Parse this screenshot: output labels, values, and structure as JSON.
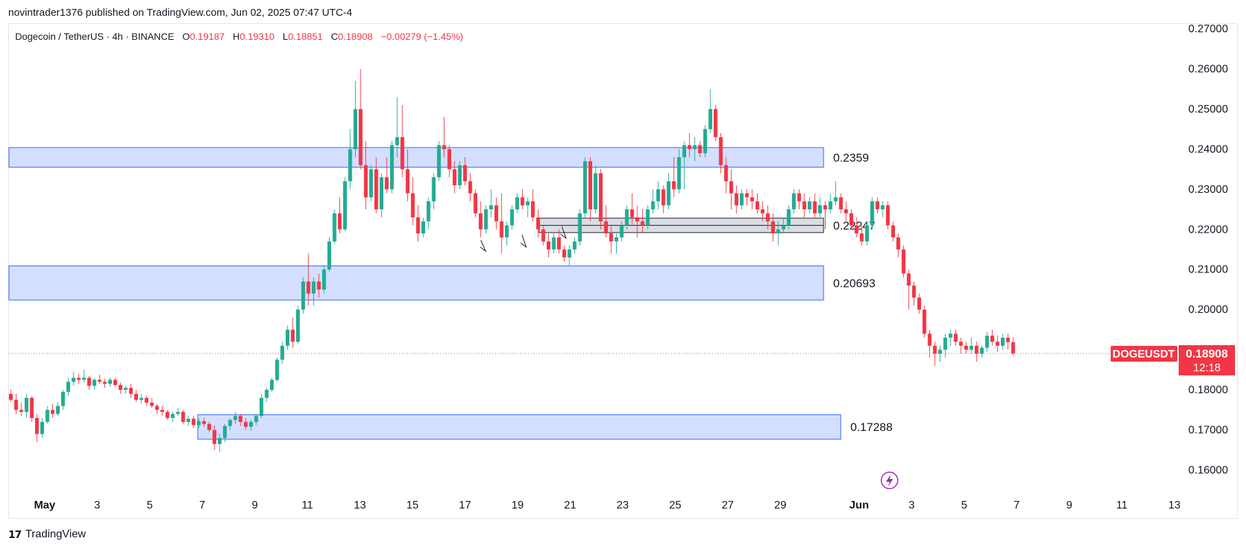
{
  "header": {
    "published": "novintrader1376 published on TradingView.com, Jun 02, 2025 07:47 UTC-4"
  },
  "legend": {
    "symbol": "Dogecoin / TetherUS · 4h · BINANCE",
    "o_label": "O",
    "o": "0.19187",
    "h_label": "H",
    "h": "0.19310",
    "l_label": "L",
    "l": "0.18851",
    "c_label": "C",
    "c": "0.18908",
    "change": "−0.00279 (−1.45%)"
  },
  "price_badge": {
    "ticker": "DOGEUSDT",
    "price": "0.18908",
    "countdown": "12:18"
  },
  "branding": {
    "name": "TradingView"
  },
  "colors": {
    "up": "#22ab94",
    "down": "#f23645",
    "zone_fill": "#cfdcff",
    "zone_stroke": "#2962ff",
    "gray_zone": "#d1d4dc"
  },
  "chart_data": {
    "type": "candlestick",
    "title": "",
    "xlabel": "",
    "ylabel": "",
    "ylim": [
      0.15,
      0.27
    ],
    "y_ticks": [
      "0.27000",
      "0.26000",
      "0.25000",
      "0.24000",
      "0.23000",
      "0.22000",
      "0.21000",
      "0.20000",
      "0.18000",
      "0.17000",
      "0.16000"
    ],
    "x_ticks": [
      "May",
      "3",
      "5",
      "7",
      "9",
      "11",
      "13",
      "15",
      "17",
      "19",
      "21",
      "23",
      "25",
      "27",
      "29",
      "Jun",
      "3",
      "5",
      "7",
      "9",
      "11",
      "13"
    ],
    "last_price": 0.18908,
    "zones": [
      {
        "label": "0.2359",
        "low": 0.2355,
        "high": 0.2404,
        "from": "May 1",
        "to": "May 31",
        "style": "blue"
      },
      {
        "label": "0.22247",
        "low": 0.2192,
        "high": 0.2228,
        "from": "May 20",
        "to": "May 31",
        "style": "gray"
      },
      {
        "label": "0.20693",
        "low": 0.2024,
        "high": 0.2109,
        "from": "May 1",
        "to": "May 31",
        "style": "blue"
      },
      {
        "label": "0.17288",
        "low": 0.1677,
        "high": 0.1738,
        "from": "May 7",
        "to": "Jun 1",
        "style": "blue"
      }
    ],
    "ohlc_4h": [
      [
        0.179,
        0.1802,
        0.177,
        0.1775
      ],
      [
        0.1775,
        0.179,
        0.174,
        0.175
      ],
      [
        0.175,
        0.1768,
        0.1735,
        0.1745
      ],
      [
        0.1745,
        0.179,
        0.173,
        0.178
      ],
      [
        0.178,
        0.1785,
        0.172,
        0.173
      ],
      [
        0.173,
        0.174,
        0.167,
        0.169
      ],
      [
        0.169,
        0.173,
        0.168,
        0.172
      ],
      [
        0.172,
        0.176,
        0.1715,
        0.175
      ],
      [
        0.175,
        0.1765,
        0.173,
        0.174
      ],
      [
        0.174,
        0.177,
        0.1735,
        0.176
      ],
      [
        0.176,
        0.18,
        0.175,
        0.1795
      ],
      [
        0.1795,
        0.183,
        0.1785,
        0.182
      ],
      [
        0.182,
        0.1845,
        0.181,
        0.183
      ],
      [
        0.183,
        0.184,
        0.1815,
        0.1825
      ],
      [
        0.1825,
        0.185,
        0.1818,
        0.183
      ],
      [
        0.183,
        0.1835,
        0.18,
        0.181
      ],
      [
        0.181,
        0.183,
        0.18,
        0.1825
      ],
      [
        0.1825,
        0.1838,
        0.1815,
        0.182
      ],
      [
        0.182,
        0.1828,
        0.1805,
        0.1815
      ],
      [
        0.1815,
        0.183,
        0.1808,
        0.1825
      ],
      [
        0.1825,
        0.183,
        0.1808,
        0.1812
      ],
      [
        0.1812,
        0.1818,
        0.179,
        0.18
      ],
      [
        0.18,
        0.181,
        0.179,
        0.1805
      ],
      [
        0.1805,
        0.1815,
        0.178,
        0.179
      ],
      [
        0.179,
        0.18,
        0.177,
        0.1775
      ],
      [
        0.1775,
        0.179,
        0.1765,
        0.178
      ],
      [
        0.178,
        0.1785,
        0.176,
        0.1768
      ],
      [
        0.1768,
        0.178,
        0.1755,
        0.176
      ],
      [
        0.176,
        0.1765,
        0.174,
        0.175
      ],
      [
        0.175,
        0.176,
        0.1735,
        0.1745
      ],
      [
        0.1745,
        0.175,
        0.1725,
        0.173
      ],
      [
        0.173,
        0.1745,
        0.172,
        0.174
      ],
      [
        0.174,
        0.1755,
        0.1735,
        0.1745
      ],
      [
        0.1745,
        0.175,
        0.1715,
        0.172
      ],
      [
        0.172,
        0.1735,
        0.171,
        0.1728
      ],
      [
        0.1728,
        0.1735,
        0.1705,
        0.1712
      ],
      [
        0.1712,
        0.1728,
        0.1705,
        0.1722
      ],
      [
        0.1722,
        0.173,
        0.1708,
        0.1715
      ],
      [
        0.1715,
        0.172,
        0.1695,
        0.17
      ],
      [
        0.17,
        0.1712,
        0.165,
        0.1665
      ],
      [
        0.1665,
        0.169,
        0.1645,
        0.168
      ],
      [
        0.168,
        0.1715,
        0.167,
        0.171
      ],
      [
        0.171,
        0.173,
        0.17,
        0.1725
      ],
      [
        0.1725,
        0.1745,
        0.1715,
        0.1735
      ],
      [
        0.1735,
        0.174,
        0.171,
        0.172
      ],
      [
        0.172,
        0.173,
        0.17,
        0.1708
      ],
      [
        0.1708,
        0.1725,
        0.1698,
        0.172
      ],
      [
        0.172,
        0.174,
        0.1712,
        0.1735
      ],
      [
        0.1735,
        0.179,
        0.173,
        0.178
      ],
      [
        0.178,
        0.1805,
        0.177,
        0.18
      ],
      [
        0.18,
        0.183,
        0.1795,
        0.1825
      ],
      [
        0.1825,
        0.188,
        0.182,
        0.1875
      ],
      [
        0.1875,
        0.192,
        0.1865,
        0.191
      ],
      [
        0.191,
        0.196,
        0.19,
        0.195
      ],
      [
        0.195,
        0.198,
        0.1905,
        0.192
      ],
      [
        0.192,
        0.201,
        0.1915,
        0.2
      ],
      [
        0.2,
        0.208,
        0.199,
        0.207
      ],
      [
        0.207,
        0.214,
        0.201,
        0.204
      ],
      [
        0.204,
        0.208,
        0.201,
        0.207
      ],
      [
        0.207,
        0.209,
        0.203,
        0.205
      ],
      [
        0.205,
        0.211,
        0.204,
        0.21
      ],
      [
        0.21,
        0.218,
        0.2095,
        0.217
      ],
      [
        0.217,
        0.225,
        0.2165,
        0.224
      ],
      [
        0.224,
        0.228,
        0.219,
        0.22
      ],
      [
        0.22,
        0.233,
        0.2195,
        0.232
      ],
      [
        0.232,
        0.245,
        0.23,
        0.24
      ],
      [
        0.24,
        0.257,
        0.238,
        0.25
      ],
      [
        0.25,
        0.26,
        0.235,
        0.236
      ],
      [
        0.236,
        0.242,
        0.225,
        0.228
      ],
      [
        0.228,
        0.236,
        0.227,
        0.235
      ],
      [
        0.235,
        0.238,
        0.224,
        0.225
      ],
      [
        0.225,
        0.234,
        0.223,
        0.233
      ],
      [
        0.233,
        0.238,
        0.229,
        0.23
      ],
      [
        0.23,
        0.242,
        0.229,
        0.241
      ],
      [
        0.241,
        0.253,
        0.238,
        0.243
      ],
      [
        0.243,
        0.251,
        0.233,
        0.235
      ],
      [
        0.235,
        0.24,
        0.227,
        0.229
      ],
      [
        0.229,
        0.233,
        0.221,
        0.223
      ],
      [
        0.223,
        0.226,
        0.217,
        0.219
      ],
      [
        0.219,
        0.223,
        0.218,
        0.222
      ],
      [
        0.222,
        0.228,
        0.22,
        0.227
      ],
      [
        0.227,
        0.234,
        0.225,
        0.233
      ],
      [
        0.233,
        0.242,
        0.232,
        0.241
      ],
      [
        0.241,
        0.248,
        0.238,
        0.24
      ],
      [
        0.24,
        0.241,
        0.233,
        0.235
      ],
      [
        0.235,
        0.237,
        0.229,
        0.231
      ],
      [
        0.231,
        0.237,
        0.23,
        0.236
      ],
      [
        0.236,
        0.238,
        0.231,
        0.232
      ],
      [
        0.232,
        0.234,
        0.227,
        0.229
      ],
      [
        0.229,
        0.23,
        0.223,
        0.224
      ],
      [
        0.224,
        0.227,
        0.218,
        0.22
      ],
      [
        0.22,
        0.226,
        0.219,
        0.225
      ],
      [
        0.225,
        0.23,
        0.223,
        0.226
      ],
      [
        0.226,
        0.228,
        0.22,
        0.222
      ],
      [
        0.222,
        0.229,
        0.214,
        0.218
      ],
      [
        0.218,
        0.222,
        0.216,
        0.221
      ],
      [
        0.221,
        0.226,
        0.22,
        0.225
      ],
      [
        0.225,
        0.229,
        0.224,
        0.228
      ],
      [
        0.228,
        0.23,
        0.225,
        0.226
      ],
      [
        0.226,
        0.228,
        0.223,
        0.227
      ],
      [
        0.227,
        0.23,
        0.222,
        0.223
      ],
      [
        0.223,
        0.225,
        0.218,
        0.22
      ],
      [
        0.22,
        0.221,
        0.216,
        0.217
      ],
      [
        0.217,
        0.219,
        0.213,
        0.215
      ],
      [
        0.215,
        0.219,
        0.214,
        0.218
      ],
      [
        0.218,
        0.22,
        0.214,
        0.215
      ],
      [
        0.215,
        0.216,
        0.212,
        0.213
      ],
      [
        0.213,
        0.216,
        0.211,
        0.215
      ],
      [
        0.215,
        0.218,
        0.214,
        0.217
      ],
      [
        0.217,
        0.225,
        0.216,
        0.224
      ],
      [
        0.224,
        0.238,
        0.223,
        0.237
      ],
      [
        0.237,
        0.238,
        0.222,
        0.225
      ],
      [
        0.225,
        0.236,
        0.224,
        0.234
      ],
      [
        0.234,
        0.235,
        0.22,
        0.222
      ],
      [
        0.222,
        0.226,
        0.218,
        0.219
      ],
      [
        0.219,
        0.221,
        0.214,
        0.217
      ],
      [
        0.217,
        0.219,
        0.214,
        0.218
      ],
      [
        0.218,
        0.222,
        0.217,
        0.221
      ],
      [
        0.221,
        0.226,
        0.22,
        0.225
      ],
      [
        0.225,
        0.229,
        0.221,
        0.223
      ],
      [
        0.223,
        0.226,
        0.218,
        0.222
      ],
      [
        0.222,
        0.225,
        0.219,
        0.221
      ],
      [
        0.221,
        0.226,
        0.22,
        0.225
      ],
      [
        0.225,
        0.23,
        0.224,
        0.227
      ],
      [
        0.227,
        0.232,
        0.225,
        0.23
      ],
      [
        0.23,
        0.231,
        0.224,
        0.226
      ],
      [
        0.226,
        0.234,
        0.225,
        0.232
      ],
      [
        0.232,
        0.238,
        0.228,
        0.23
      ],
      [
        0.23,
        0.24,
        0.229,
        0.238
      ],
      [
        0.238,
        0.242,
        0.23,
        0.241
      ],
      [
        0.241,
        0.244,
        0.238,
        0.24
      ],
      [
        0.24,
        0.243,
        0.237,
        0.241
      ],
      [
        0.241,
        0.242,
        0.238,
        0.239
      ],
      [
        0.239,
        0.246,
        0.238,
        0.245
      ],
      [
        0.245,
        0.255,
        0.244,
        0.25
      ],
      [
        0.25,
        0.251,
        0.242,
        0.243
      ],
      [
        0.243,
        0.244,
        0.234,
        0.236
      ],
      [
        0.236,
        0.238,
        0.229,
        0.232
      ],
      [
        0.232,
        0.235,
        0.225,
        0.229
      ],
      [
        0.229,
        0.231,
        0.224,
        0.226
      ],
      [
        0.226,
        0.23,
        0.225,
        0.229
      ],
      [
        0.229,
        0.23,
        0.226,
        0.228
      ],
      [
        0.228,
        0.23,
        0.225,
        0.227
      ],
      [
        0.227,
        0.229,
        0.224,
        0.225
      ],
      [
        0.225,
        0.227,
        0.222,
        0.224
      ],
      [
        0.224,
        0.226,
        0.22,
        0.222
      ],
      [
        0.222,
        0.224,
        0.217,
        0.219
      ],
      [
        0.219,
        0.222,
        0.216,
        0.22
      ],
      [
        0.22,
        0.223,
        0.219,
        0.221
      ],
      [
        0.221,
        0.226,
        0.22,
        0.225
      ],
      [
        0.225,
        0.23,
        0.224,
        0.229
      ],
      [
        0.229,
        0.23,
        0.225,
        0.227
      ],
      [
        0.227,
        0.229,
        0.223,
        0.225
      ],
      [
        0.225,
        0.228,
        0.224,
        0.227
      ],
      [
        0.227,
        0.229,
        0.223,
        0.224
      ],
      [
        0.224,
        0.228,
        0.223,
        0.226
      ],
      [
        0.226,
        0.227,
        0.22,
        0.225
      ],
      [
        0.225,
        0.229,
        0.224,
        0.227
      ],
      [
        0.227,
        0.232,
        0.226,
        0.228
      ],
      [
        0.228,
        0.229,
        0.224,
        0.225
      ],
      [
        0.225,
        0.227,
        0.222,
        0.224
      ],
      [
        0.224,
        0.225,
        0.22,
        0.221
      ],
      [
        0.221,
        0.223,
        0.218,
        0.219
      ],
      [
        0.219,
        0.221,
        0.216,
        0.217
      ],
      [
        0.217,
        0.222,
        0.216,
        0.221
      ],
      [
        0.221,
        0.228,
        0.22,
        0.227
      ],
      [
        0.227,
        0.228,
        0.224,
        0.225
      ],
      [
        0.225,
        0.227,
        0.223,
        0.226
      ],
      [
        0.226,
        0.227,
        0.22,
        0.221
      ],
      [
        0.221,
        0.222,
        0.217,
        0.218
      ],
      [
        0.218,
        0.219,
        0.213,
        0.215
      ],
      [
        0.215,
        0.216,
        0.208,
        0.209
      ],
      [
        0.209,
        0.21,
        0.2,
        0.206
      ],
      [
        0.206,
        0.207,
        0.201,
        0.203
      ],
      [
        0.203,
        0.204,
        0.199,
        0.2
      ],
      [
        0.2,
        0.201,
        0.193,
        0.194
      ],
      [
        0.194,
        0.195,
        0.188,
        0.191
      ],
      [
        0.191,
        0.192,
        0.186,
        0.189
      ],
      [
        0.189,
        0.191,
        0.187,
        0.19
      ],
      [
        0.19,
        0.194,
        0.188,
        0.193
      ],
      [
        0.193,
        0.195,
        0.191,
        0.194
      ],
      [
        0.194,
        0.195,
        0.191,
        0.192
      ],
      [
        0.192,
        0.193,
        0.189,
        0.191
      ],
      [
        0.191,
        0.192,
        0.189,
        0.19
      ],
      [
        0.19,
        0.193,
        0.189,
        0.191
      ],
      [
        0.191,
        0.192,
        0.187,
        0.189
      ],
      [
        0.189,
        0.191,
        0.188,
        0.1905
      ],
      [
        0.1905,
        0.1945,
        0.1895,
        0.1935
      ],
      [
        0.1935,
        0.195,
        0.191,
        0.192
      ],
      [
        0.192,
        0.1935,
        0.1895,
        0.191
      ],
      [
        0.191,
        0.194,
        0.19,
        0.193
      ],
      [
        0.193,
        0.194,
        0.19,
        0.1919
      ],
      [
        0.1919,
        0.1931,
        0.1885,
        0.1891
      ]
    ]
  }
}
